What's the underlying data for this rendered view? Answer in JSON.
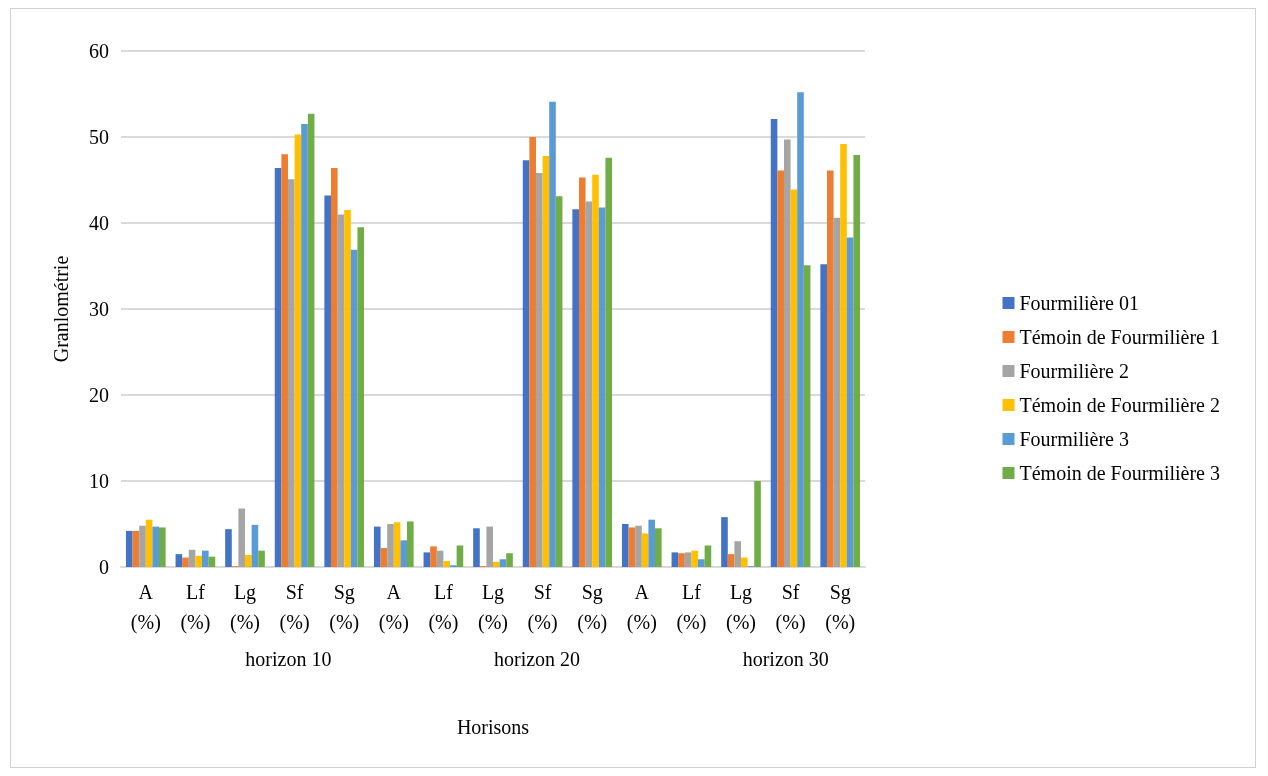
{
  "chart_data": {
    "type": "bar",
    "xlabel": "Horisons",
    "ylabel": "Granlométrie",
    "categories": [
      "A\n(%)",
      "Lf\n(%)",
      "Lg\n(%)",
      "Sf\n(%)",
      "Sg\n(%)",
      "A\n(%)",
      "Lf\n(%)",
      "Lg\n(%)",
      "Sf\n(%)",
      "Sg\n(%)",
      "A\n(%)",
      "Lf\n(%)",
      "Lg\n(%)",
      "Sf\n(%)",
      "Sg\n(%)"
    ],
    "annotations": [
      "horizon 10",
      "horizon 20",
      "horizon 30"
    ],
    "series": [
      {
        "name": "Fourmilière 01",
        "color": "#4472c4",
        "values": [
          4.2,
          1.5,
          4.4,
          46.4,
          43.2,
          4.7,
          1.7,
          4.5,
          47.3,
          41.6,
          5.0,
          1.7,
          5.8,
          52.1,
          35.2
        ]
      },
      {
        "name": "Témoin de Fourmilière 1",
        "color": "#ed7d31",
        "values": [
          4.2,
          1.1,
          0.1,
          48.0,
          46.4,
          2.2,
          2.4,
          0.1,
          50.0,
          45.3,
          4.6,
          1.6,
          1.5,
          46.1,
          46.1
        ]
      },
      {
        "name": "Fourmilière 2",
        "color": "#a5a5a5",
        "values": [
          4.8,
          2.0,
          6.8,
          45.1,
          41.0,
          5.0,
          1.9,
          4.7,
          45.8,
          42.5,
          4.8,
          1.7,
          3.0,
          49.7,
          40.6
        ]
      },
      {
        "name": "Témoin de Fourmilière 2",
        "color": "#ffc000",
        "values": [
          5.5,
          1.3,
          1.4,
          50.3,
          41.5,
          5.2,
          0.7,
          0.6,
          47.8,
          45.6,
          3.9,
          1.9,
          1.1,
          43.9,
          49.2
        ]
      },
      {
        "name": "Fourmilière 3",
        "color": "#5b9bd5",
        "values": [
          4.7,
          1.9,
          4.9,
          51.5,
          36.9,
          3.1,
          0.2,
          0.9,
          54.1,
          41.8,
          5.5,
          0.9,
          0.1,
          55.2,
          38.3
        ]
      },
      {
        "name": "Témoin de Fourmilière 3",
        "color": "#70ad47",
        "values": [
          4.6,
          1.2,
          1.9,
          52.7,
          39.5,
          5.3,
          2.5,
          1.6,
          43.1,
          47.6,
          4.5,
          2.5,
          10.0,
          35.1,
          47.9
        ]
      }
    ],
    "ylim": [
      0,
      60
    ],
    "yticks": [
      0,
      10,
      20,
      30,
      40,
      50,
      60
    ],
    "grid": "y",
    "legend": "right"
  }
}
